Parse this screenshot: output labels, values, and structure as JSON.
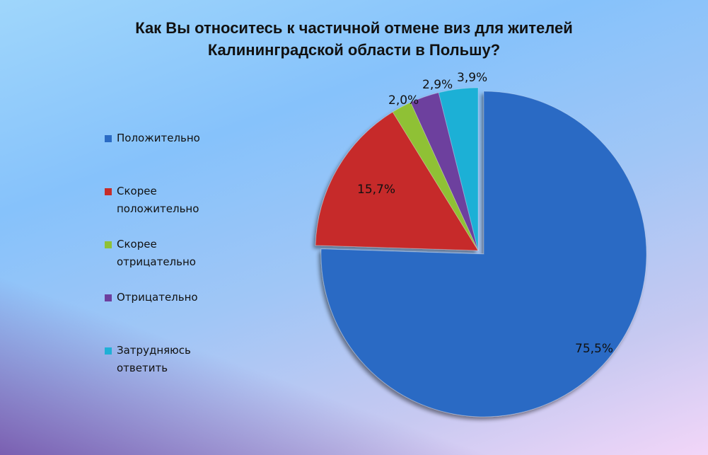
{
  "chart_data": {
    "type": "pie",
    "title_lines": [
      "Как Вы относитесь к частичной отмене виз для жителей",
      "Калининградской области в Польшу?"
    ],
    "slices": [
      {
        "label": "Положительно",
        "value": 75.5,
        "display": "75,5%",
        "color": "#2b6bc4"
      },
      {
        "label": "Скорее\nположительно",
        "value": 15.7,
        "display": "15,7%",
        "color": "#c62c29"
      },
      {
        "label": "Скорее\nотрицательно",
        "value": 2.0,
        "display": "2,0%",
        "color": "#8fc136"
      },
      {
        "label": "Отрицательно",
        "value": 2.9,
        "display": "2,9%",
        "color": "#6d3f9e"
      },
      {
        "label": "Затрудняюсь\nответить",
        "value": 3.9,
        "display": "3,9%",
        "color": "#1fb0d6"
      }
    ],
    "legend_position": "left",
    "exploded_slice": "Положительно"
  }
}
